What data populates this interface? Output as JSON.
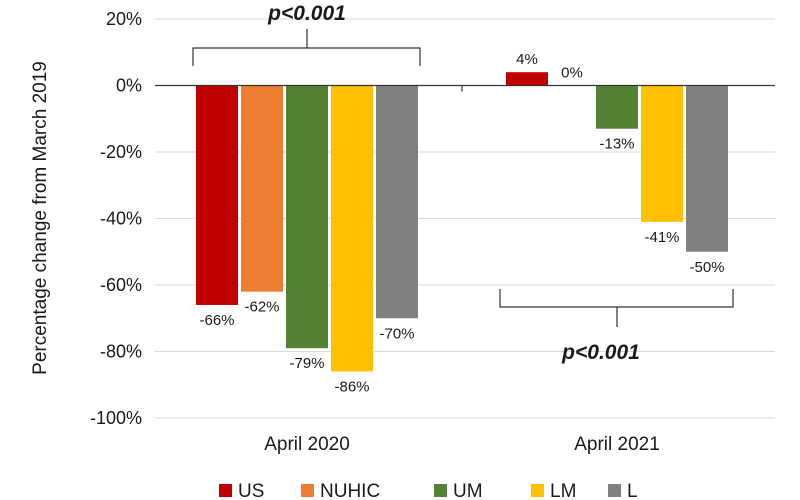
{
  "chart_data": {
    "type": "bar",
    "ylabel": "Percentage change from March 2019",
    "ylim": [
      -100,
      20
    ],
    "yticks": [
      20,
      0,
      -20,
      -40,
      -60,
      -80,
      -100
    ],
    "ytick_labels": [
      "20%",
      "0%",
      "-20%",
      "-40%",
      "-60%",
      "-80%",
      "-100%"
    ],
    "categories": [
      "April 2020",
      "April 2021"
    ],
    "series": [
      {
        "name": "US",
        "color": "#c00000",
        "values": [
          -66,
          4
        ],
        "labels": [
          "-66%",
          "4%"
        ]
      },
      {
        "name": "NUHIC",
        "color": "#ed7d31",
        "values": [
          -62,
          0
        ],
        "labels": [
          "-62%",
          "0%"
        ]
      },
      {
        "name": "UM",
        "color": "#548235",
        "values": [
          -79,
          -13
        ],
        "labels": [
          "-79%",
          "-13%"
        ]
      },
      {
        "name": "LM",
        "color": "#ffc000",
        "values": [
          -86,
          -41
        ],
        "labels": [
          "-86%",
          "-41%"
        ]
      },
      {
        "name": "L",
        "color": "#808080",
        "values": [
          -70,
          -50
        ],
        "labels": [
          "-70%",
          "-50%"
        ]
      }
    ],
    "annotations": [
      {
        "category": "April 2020",
        "text": "p<0.001",
        "position": "above"
      },
      {
        "category": "April 2021",
        "text": "p<0.001",
        "position": "below"
      }
    ],
    "legend_position": "bottom",
    "grid": true
  }
}
